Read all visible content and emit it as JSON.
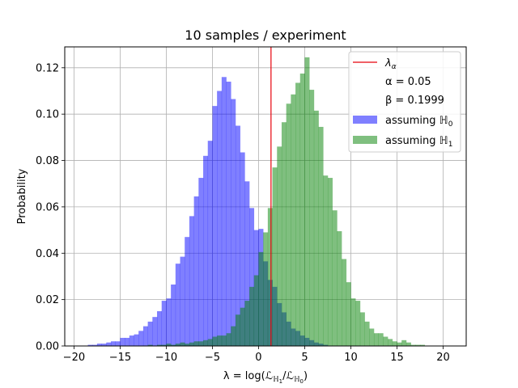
{
  "chart_data": {
    "type": "bar",
    "title": "10 samples / experiment",
    "xlabel": "λ = log(ℒ",
    "xlabel_parts": {
      "main": "λ = log(ℒ",
      "sub1": "ℍ",
      "sub1_sub": "1",
      "mid": "/ℒ",
      "sub2": "ℍ",
      "sub2_sub": "0",
      "end": ")"
    },
    "ylabel": "Probability",
    "xlim": [
      -21,
      22.5
    ],
    "ylim": [
      0,
      0.129
    ],
    "grid": true,
    "legend_position": "top-right",
    "xticks": [
      -20,
      -15,
      -10,
      -5,
      0,
      5,
      10,
      15,
      20
    ],
    "xtick_labels": [
      "−20",
      "−15",
      "−10",
      "−5",
      "0",
      "5",
      "10",
      "15",
      "20"
    ],
    "yticks": [
      0.0,
      0.02,
      0.04,
      0.06,
      0.08,
      0.1,
      0.12
    ],
    "ytick_labels": [
      "0.00",
      "0.02",
      "0.04",
      "0.06",
      "0.08",
      "0.10",
      "0.12"
    ],
    "threshold": {
      "x": 1.35,
      "color": "#e8000b"
    },
    "legend": {
      "lambda_label": "λ",
      "lambda_sub": "α",
      "alpha_text": "α = 0.05",
      "beta_text": "β = 0.1999",
      "h0_prefix": "assuming ",
      "h0_symbol": "ℍ",
      "h0_sub": "0",
      "h1_prefix": "assuming ",
      "h1_symbol": "ℍ",
      "h1_sub": "1"
    },
    "series": [
      {
        "name": "assuming ℍ0",
        "color": "#0000ff",
        "opacity": 0.5,
        "bin_width": 0.5,
        "bins": [
          [
            -18.5,
            0.0005
          ],
          [
            -18.0,
            0.0005
          ],
          [
            -17.5,
            0.001
          ],
          [
            -17.0,
            0.001
          ],
          [
            -16.5,
            0.0015
          ],
          [
            -16.0,
            0.002
          ],
          [
            -15.5,
            0.002
          ],
          [
            -15.0,
            0.0035
          ],
          [
            -14.5,
            0.0035
          ],
          [
            -14.0,
            0.0045
          ],
          [
            -13.5,
            0.005
          ],
          [
            -13.0,
            0.0065
          ],
          [
            -12.5,
            0.0085
          ],
          [
            -12.0,
            0.0105
          ],
          [
            -11.5,
            0.0125
          ],
          [
            -11.0,
            0.015
          ],
          [
            -10.5,
            0.0195
          ],
          [
            -10.0,
            0.0205
          ],
          [
            -9.5,
            0.0265
          ],
          [
            -9.0,
            0.0355
          ],
          [
            -8.5,
            0.0385
          ],
          [
            -8.0,
            0.047
          ],
          [
            -7.5,
            0.056
          ],
          [
            -7.0,
            0.0645
          ],
          [
            -6.5,
            0.0725
          ],
          [
            -6.0,
            0.082
          ],
          [
            -5.5,
            0.0885
          ],
          [
            -5.0,
            0.1035
          ],
          [
            -4.5,
            0.11
          ],
          [
            -4.0,
            0.116
          ],
          [
            -3.5,
            0.114
          ],
          [
            -3.0,
            0.1065
          ],
          [
            -2.5,
            0.095
          ],
          [
            -2.0,
            0.0835
          ],
          [
            -1.5,
            0.071
          ],
          [
            -1.0,
            0.0595
          ],
          [
            -0.5,
            0.05
          ],
          [
            0.0,
            0.0505
          ],
          [
            0.5,
            0.0365
          ],
          [
            1.0,
            0.0285
          ],
          [
            1.5,
            0.0255
          ],
          [
            2.0,
            0.0185
          ],
          [
            2.5,
            0.0145
          ],
          [
            3.0,
            0.0105
          ],
          [
            3.5,
            0.0075
          ],
          [
            4.0,
            0.0065
          ],
          [
            4.5,
            0.0045
          ],
          [
            5.0,
            0.0035
          ],
          [
            5.5,
            0.0025
          ],
          [
            6.0,
            0.0015
          ],
          [
            6.5,
            0.001
          ],
          [
            7.0,
            0.0005
          ]
        ]
      },
      {
        "name": "assuming ℍ1",
        "color": "#008000",
        "opacity": 0.5,
        "bin_width": 0.5,
        "bins": [
          [
            -12.0,
            0.0005
          ],
          [
            -11.0,
            0.0005
          ],
          [
            -10.5,
            0.0005
          ],
          [
            -10.0,
            0.001
          ],
          [
            -9.5,
            0.0005
          ],
          [
            -9.0,
            0.001
          ],
          [
            -8.5,
            0.0015
          ],
          [
            -8.0,
            0.001
          ],
          [
            -7.5,
            0.0015
          ],
          [
            -7.0,
            0.002
          ],
          [
            -6.5,
            0.002
          ],
          [
            -6.0,
            0.0025
          ],
          [
            -5.5,
            0.003
          ],
          [
            -5.0,
            0.004
          ],
          [
            -4.5,
            0.0045
          ],
          [
            -4.0,
            0.0045
          ],
          [
            -3.5,
            0.0055
          ],
          [
            -3.0,
            0.0085
          ],
          [
            -2.5,
            0.0135
          ],
          [
            -2.0,
            0.0165
          ],
          [
            -1.5,
            0.0195
          ],
          [
            -1.0,
            0.0255
          ],
          [
            -0.5,
            0.0305
          ],
          [
            0.0,
            0.0405
          ],
          [
            0.5,
            0.049
          ],
          [
            1.0,
            0.0595
          ],
          [
            1.5,
            0.077
          ],
          [
            2.0,
            0.086
          ],
          [
            2.5,
            0.0965
          ],
          [
            3.0,
            0.1045
          ],
          [
            3.5,
            0.1085
          ],
          [
            4.0,
            0.1135
          ],
          [
            4.5,
            0.1175
          ],
          [
            5.0,
            0.1245
          ],
          [
            5.5,
            0.1105
          ],
          [
            6.0,
            0.1015
          ],
          [
            6.5,
            0.0945
          ],
          [
            7.0,
            0.0735
          ],
          [
            7.5,
            0.0725
          ],
          [
            8.0,
            0.0585
          ],
          [
            8.5,
            0.0495
          ],
          [
            9.0,
            0.0375
          ],
          [
            9.5,
            0.0275
          ],
          [
            10.0,
            0.0205
          ],
          [
            10.5,
            0.0195
          ],
          [
            11.0,
            0.0145
          ],
          [
            11.5,
            0.0105
          ],
          [
            12.0,
            0.0075
          ],
          [
            12.5,
            0.0055
          ],
          [
            13.0,
            0.0055
          ],
          [
            13.5,
            0.004
          ],
          [
            14.0,
            0.003
          ],
          [
            14.5,
            0.002
          ],
          [
            15.0,
            0.0015
          ],
          [
            15.5,
            0.0025
          ],
          [
            16.0,
            0.0015
          ],
          [
            16.5,
            0.0005
          ],
          [
            17.0,
            0.0005
          ],
          [
            17.5,
            0.0005
          ]
        ]
      }
    ]
  }
}
